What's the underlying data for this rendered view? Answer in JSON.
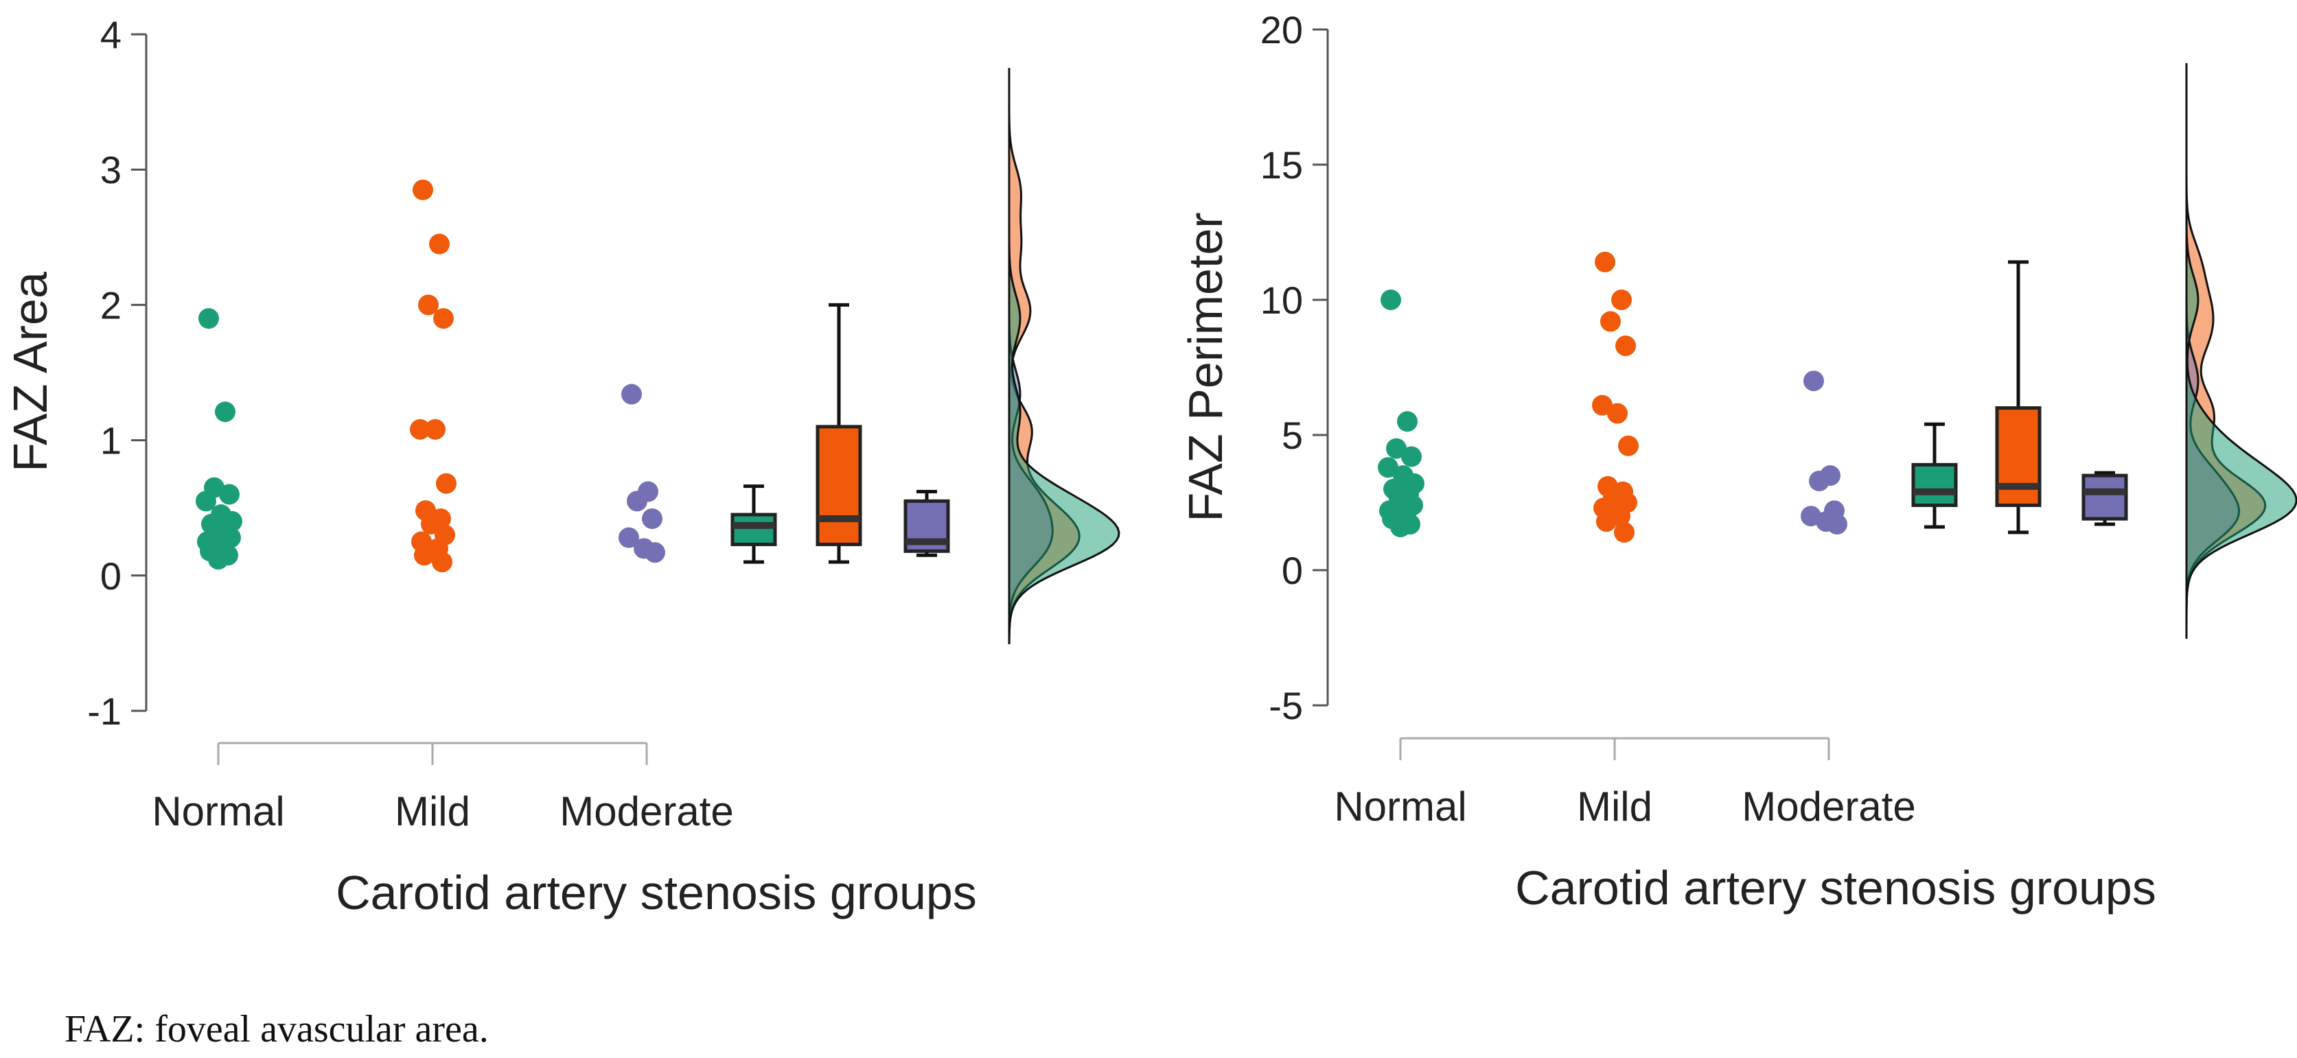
{
  "caption": "FAZ: foveal avascular area.",
  "chart_data": [
    {
      "type": "raincloud",
      "ylabel": "FAZ Area",
      "xlabel": "Carotid artery stenosis groups",
      "ylim": [
        -1,
        4
      ],
      "yticks": [
        "4",
        "3",
        "2",
        "1",
        "0",
        "-1"
      ],
      "categories": [
        "Normal",
        "Mild",
        "Moderate"
      ],
      "colors": [
        "#1b9e77",
        "#f05a0a",
        "#7570b3"
      ],
      "groups": [
        {
          "name": "Normal",
          "points": [
            1.9,
            1.21,
            0.65,
            0.6,
            0.55,
            0.45,
            0.4,
            0.38,
            0.35,
            0.3,
            0.28,
            0.25,
            0.2,
            0.18,
            0.15,
            0.12
          ],
          "box": {
            "whisker_low": 0.1,
            "q1": 0.23,
            "median": 0.37,
            "q3": 0.45,
            "whisker_high": 0.66
          }
        },
        {
          "name": "Mild",
          "points": [
            2.85,
            2.45,
            2.0,
            1.9,
            1.08,
            1.08,
            0.68,
            0.48,
            0.42,
            0.38,
            0.3,
            0.25,
            0.2,
            0.15,
            0.1
          ],
          "box": {
            "whisker_low": 0.1,
            "q1": 0.23,
            "median": 0.42,
            "q3": 1.1,
            "whisker_high": 2.0
          }
        },
        {
          "name": "Moderate",
          "points": [
            1.34,
            0.62,
            0.55,
            0.42,
            0.28,
            0.2,
            0.17
          ],
          "box": {
            "whisker_low": 0.15,
            "q1": 0.18,
            "median": 0.25,
            "q3": 0.55,
            "whisker_high": 0.62
          }
        }
      ]
    },
    {
      "type": "raincloud",
      "ylabel": "FAZ Perimeter",
      "xlabel": "Carotid artery stenosis groups",
      "ylim": [
        -5,
        20
      ],
      "yticks": [
        "20",
        "15",
        "10",
        "5",
        "0",
        "-5"
      ],
      "categories": [
        "Normal",
        "Mild",
        "Moderate"
      ],
      "colors": [
        "#1b9e77",
        "#f05a0a",
        "#7570b3"
      ],
      "groups": [
        {
          "name": "Normal",
          "points": [
            10.0,
            5.5,
            4.5,
            4.2,
            3.8,
            3.5,
            3.2,
            3.0,
            2.8,
            2.6,
            2.4,
            2.2,
            2.0,
            1.9,
            1.7,
            1.6
          ],
          "box": {
            "whisker_low": 1.6,
            "q1": 2.4,
            "median": 2.9,
            "q3": 3.9,
            "whisker_high": 5.4
          }
        },
        {
          "name": "Mild",
          "points": [
            11.4,
            10.0,
            9.2,
            8.3,
            6.1,
            5.8,
            4.6,
            3.1,
            2.9,
            2.7,
            2.5,
            2.3,
            2.0,
            1.8,
            1.4
          ],
          "box": {
            "whisker_low": 1.4,
            "q1": 2.4,
            "median": 3.1,
            "q3": 6.0,
            "whisker_high": 11.4
          }
        },
        {
          "name": "Moderate",
          "points": [
            7.0,
            3.5,
            3.3,
            2.2,
            2.0,
            1.8,
            1.7
          ],
          "box": {
            "whisker_low": 1.7,
            "q1": 1.9,
            "median": 2.9,
            "q3": 3.5,
            "whisker_high": 3.6
          }
        }
      ]
    }
  ]
}
